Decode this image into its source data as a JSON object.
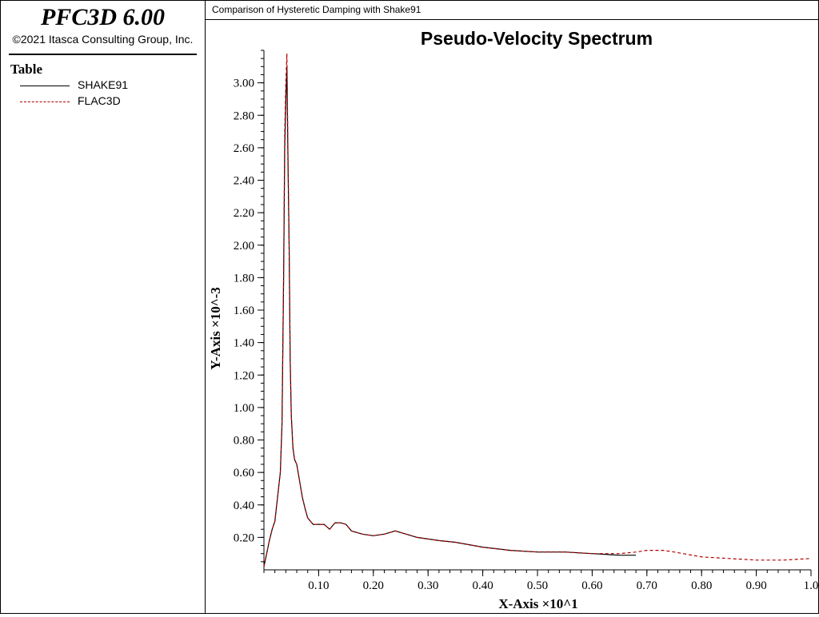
{
  "app": {
    "title": "PFC3D 6.00",
    "copyright": "©2021 Itasca Consulting Group, Inc."
  },
  "legend": {
    "title": "Table",
    "items": [
      {
        "label": "SHAKE91",
        "color": "#000000",
        "style": "solid"
      },
      {
        "label": "FLAC3D",
        "color": "#b00000",
        "style": "dashed"
      }
    ]
  },
  "header": {
    "text": "Comparison of Hysteretic Damping with Shake91"
  },
  "chart_data": {
    "type": "line",
    "title": "Pseudo-Velocity Spectrum",
    "xlabel": "X-Axis ×10^1",
    "ylabel": "Y-Axis ×10^-3",
    "xlim": [
      0.0,
      1.0
    ],
    "ylim": [
      0.0,
      3.2
    ],
    "xticks": [
      "0.10",
      "0.20",
      "0.30",
      "0.40",
      "0.50",
      "0.60",
      "0.70",
      "0.80",
      "0.90",
      "1.0"
    ],
    "yticks": [
      "0.20",
      "0.40",
      "0.60",
      "0.80",
      "1.00",
      "1.20",
      "1.40",
      "1.60",
      "1.80",
      "2.00",
      "2.20",
      "2.40",
      "2.60",
      "2.80",
      "3.00"
    ],
    "grid": false,
    "legend_placement": "sidebar",
    "series": [
      {
        "name": "SHAKE91",
        "color": "#000000",
        "dash": "solid",
        "x": [
          0.0,
          0.005,
          0.01,
          0.015,
          0.02,
          0.025,
          0.03,
          0.033,
          0.036,
          0.038,
          0.04,
          0.042,
          0.044,
          0.046,
          0.048,
          0.05,
          0.053,
          0.056,
          0.06,
          0.065,
          0.07,
          0.075,
          0.08,
          0.085,
          0.09,
          0.1,
          0.11,
          0.12,
          0.13,
          0.14,
          0.15,
          0.16,
          0.17,
          0.18,
          0.2,
          0.22,
          0.24,
          0.25,
          0.26,
          0.28,
          0.3,
          0.32,
          0.35,
          0.4,
          0.45,
          0.5,
          0.55,
          0.6,
          0.65,
          0.68
        ],
        "y": [
          0.02,
          0.1,
          0.18,
          0.25,
          0.3,
          0.45,
          0.6,
          0.9,
          1.8,
          2.6,
          2.9,
          3.1,
          2.5,
          2.0,
          1.3,
          0.95,
          0.75,
          0.68,
          0.65,
          0.55,
          0.45,
          0.38,
          0.32,
          0.3,
          0.28,
          0.28,
          0.28,
          0.25,
          0.29,
          0.29,
          0.28,
          0.24,
          0.23,
          0.22,
          0.21,
          0.22,
          0.24,
          0.23,
          0.22,
          0.2,
          0.19,
          0.18,
          0.17,
          0.14,
          0.12,
          0.11,
          0.11,
          0.1,
          0.09,
          0.09
        ]
      },
      {
        "name": "FLAC3D",
        "color": "#b00000",
        "dash": "dashed",
        "x": [
          0.0,
          0.005,
          0.01,
          0.015,
          0.02,
          0.025,
          0.03,
          0.033,
          0.036,
          0.038,
          0.04,
          0.042,
          0.044,
          0.046,
          0.048,
          0.05,
          0.053,
          0.056,
          0.06,
          0.065,
          0.07,
          0.075,
          0.08,
          0.085,
          0.09,
          0.1,
          0.11,
          0.12,
          0.13,
          0.14,
          0.15,
          0.16,
          0.17,
          0.18,
          0.2,
          0.22,
          0.24,
          0.25,
          0.26,
          0.28,
          0.3,
          0.32,
          0.35,
          0.4,
          0.45,
          0.5,
          0.55,
          0.6,
          0.65,
          0.68,
          0.7,
          0.73,
          0.75,
          0.8,
          0.85,
          0.9,
          0.95,
          1.0
        ],
        "y": [
          0.02,
          0.1,
          0.18,
          0.25,
          0.3,
          0.45,
          0.6,
          0.9,
          1.8,
          2.7,
          3.0,
          3.18,
          2.55,
          2.0,
          1.3,
          0.95,
          0.75,
          0.68,
          0.65,
          0.55,
          0.45,
          0.38,
          0.32,
          0.3,
          0.28,
          0.28,
          0.28,
          0.25,
          0.29,
          0.29,
          0.28,
          0.24,
          0.23,
          0.22,
          0.21,
          0.22,
          0.24,
          0.23,
          0.22,
          0.2,
          0.19,
          0.18,
          0.17,
          0.14,
          0.12,
          0.11,
          0.11,
          0.1,
          0.1,
          0.11,
          0.12,
          0.12,
          0.11,
          0.08,
          0.07,
          0.06,
          0.06,
          0.07
        ]
      }
    ]
  }
}
